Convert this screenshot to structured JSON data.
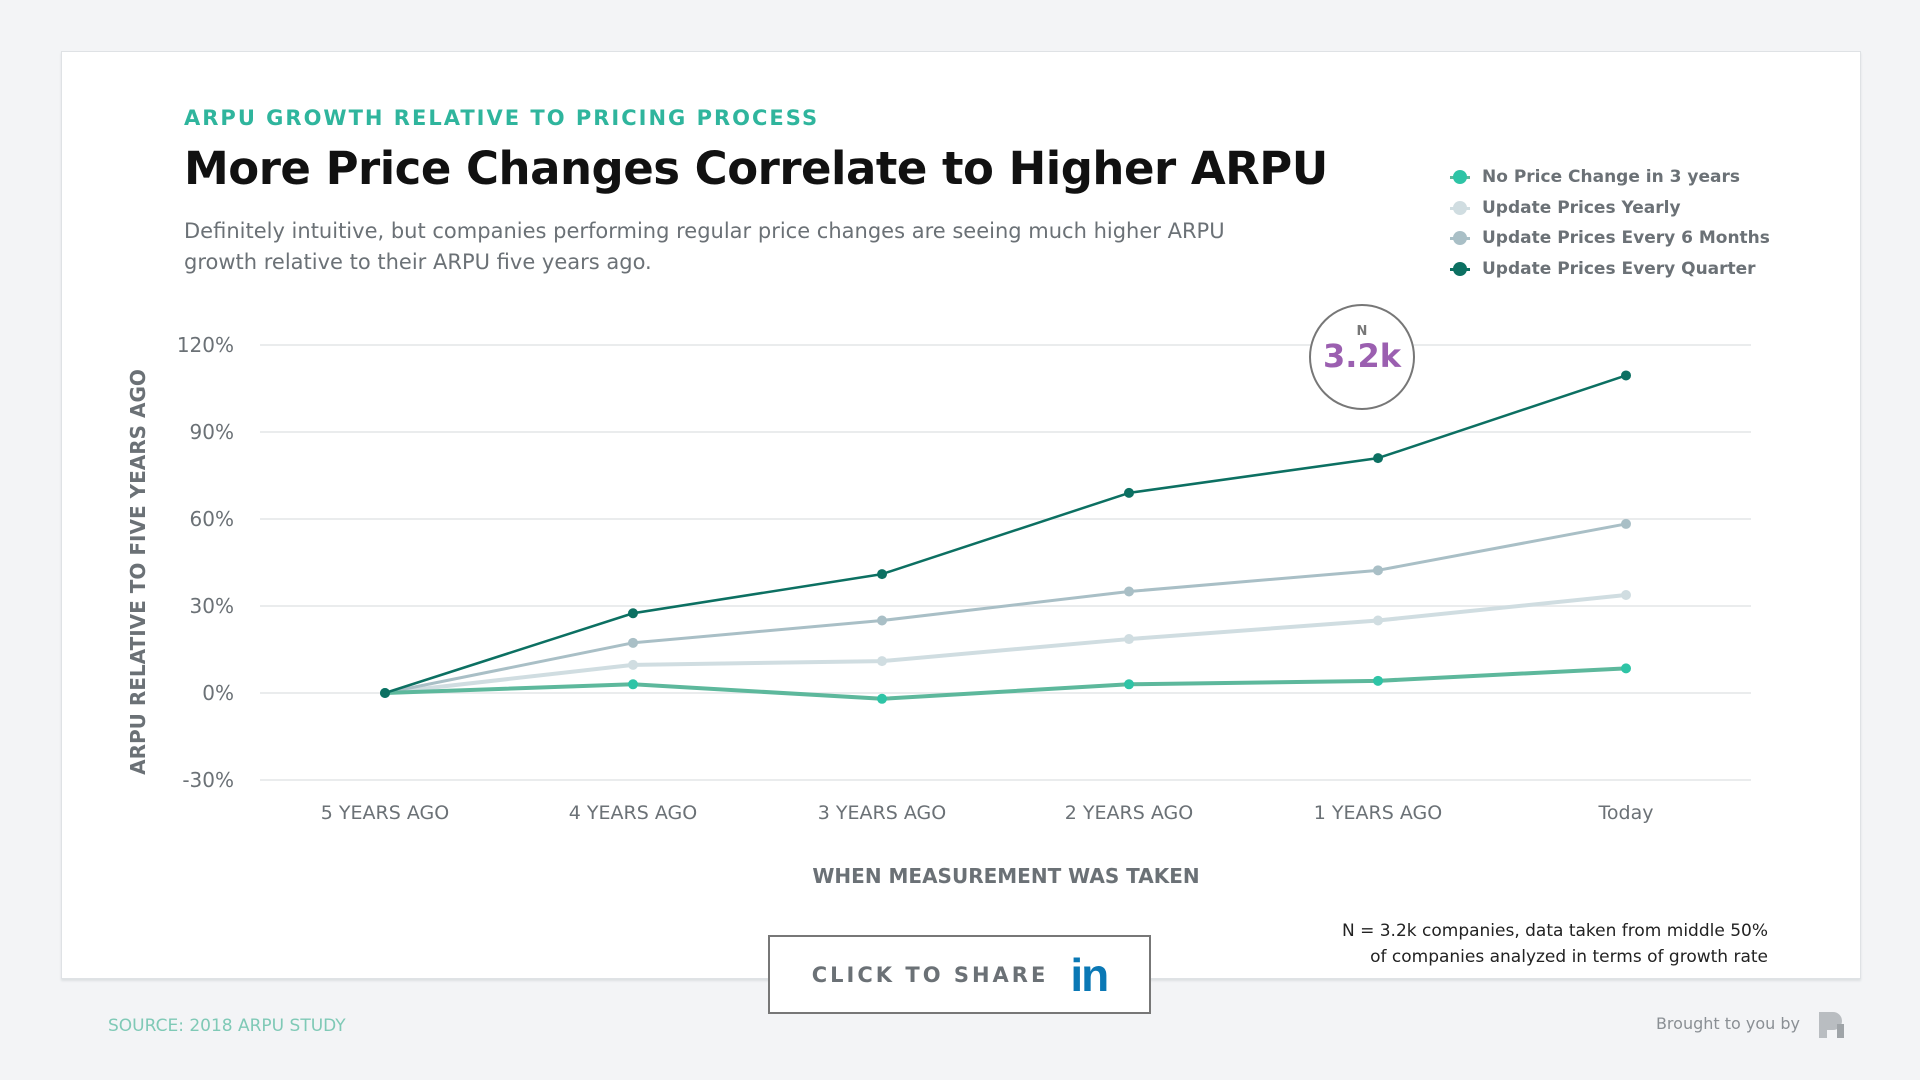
{
  "header": {
    "eyebrow": "ARPU GROWTH RELATIVE TO PRICING PROCESS",
    "title": "More Price Changes Correlate to Higher ARPU",
    "description": "Definitely intuitive, but companies performing regular price changes are seeing much higher ARPU growth relative to their ARPU five years ago."
  },
  "n_badge": {
    "label": "N",
    "value": "3.2k"
  },
  "note": {
    "line1": "N = 3.2k companies, data taken from middle 50%",
    "line2": "of companies analyzed in terms of growth rate"
  },
  "share": {
    "label": "CLICK TO SHARE",
    "icon": "linkedin-icon",
    "icon_text": "in",
    "color": "#0a78b5"
  },
  "footer": {
    "source": "SOURCE: 2018 ARPU STUDY",
    "brought": "Brought to you by"
  },
  "chart_data": {
    "type": "line",
    "xlabel": "WHEN MEASUREMENT WAS TAKEN",
    "ylabel": "ARPU RELATIVE TO FIVE YEARS AGO",
    "categories": [
      "5 YEARS AGO",
      "4 YEARS AGO",
      "3 YEARS AGO",
      "2 YEARS AGO",
      "1 YEARS AGO",
      "Today"
    ],
    "ylim": [
      -30,
      120
    ],
    "yticks": [
      -30,
      0,
      30,
      60,
      90,
      120
    ],
    "ytick_labels": [
      "-30%",
      "0%",
      "30%",
      "60%",
      "90%",
      "120%"
    ],
    "grid": true,
    "legend_position": "top-right",
    "series": [
      {
        "name": "No Price Change in 3 years",
        "color": "#5db89c",
        "dot": "#2ec4a6",
        "values": [
          0,
          3,
          -2,
          3,
          4.2,
          8.5
        ]
      },
      {
        "name": "Update Prices Yearly",
        "color": "#d0dde1",
        "dot": "#d0dde1",
        "values": [
          0,
          9.7,
          11,
          18.6,
          25,
          33.8
        ]
      },
      {
        "name": "Update Prices Every 6 Months",
        "color": "#a9bfc6",
        "dot": "#a9bfc6",
        "values": [
          0,
          17.3,
          25,
          35,
          42.3,
          58.3
        ]
      },
      {
        "name": "Update Prices Every Quarter",
        "color": "#0c7062",
        "dot": "#0c7062",
        "values": [
          0,
          27.5,
          41,
          69,
          81,
          109.5
        ]
      }
    ]
  }
}
